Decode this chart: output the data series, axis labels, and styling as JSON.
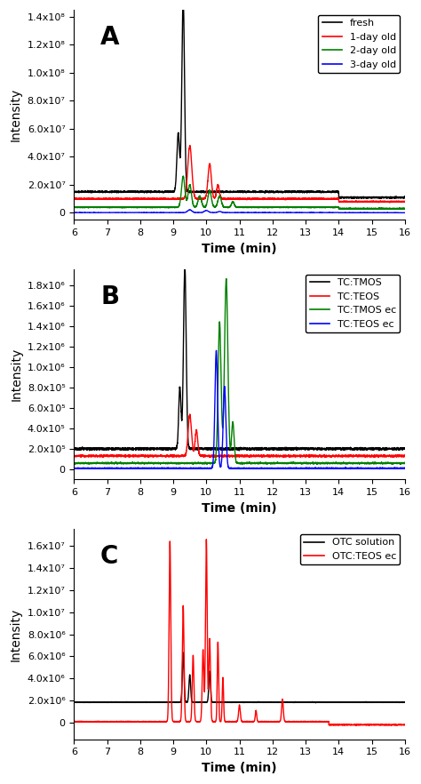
{
  "panel_A": {
    "label": "A",
    "xlim": [
      6,
      16
    ],
    "ylim": [
      -5000000.0,
      145000000.0
    ],
    "yticks": [
      0,
      20000000.0,
      40000000.0,
      60000000.0,
      80000000.0,
      100000000.0,
      120000000.0,
      140000000.0
    ],
    "ytick_labels": [
      "0",
      "2.0x10⁷",
      "4.0x10⁷",
      "6.0x10⁷",
      "8.0x10⁷",
      "1.0x10⁸",
      "1.2x10⁸",
      "1.4x10⁸"
    ],
    "legend": [
      "fresh",
      "1-day old",
      "2-day old",
      "3-day old"
    ],
    "colors": [
      "black",
      "red",
      "green",
      "blue"
    ],
    "baseline": [
      15000000.0,
      10000000.0,
      4000000.0,
      200000.0
    ],
    "xlabel": "Time (min)",
    "ylabel": "Intensity"
  },
  "panel_B": {
    "label": "B",
    "xlim": [
      6,
      16
    ],
    "ylim": [
      -100000.0,
      1950000.0
    ],
    "yticks": [
      0,
      200000.0,
      400000.0,
      600000.0,
      800000.0,
      1000000.0,
      1200000.0,
      1400000.0,
      1600000.0,
      1800000.0
    ],
    "ytick_labels": [
      "0",
      "2.0x10⁵",
      "4.0x10⁵",
      "6.0x10⁵",
      "8.0x10⁵",
      "1.0x10⁶",
      "1.2x10⁶",
      "1.4x10⁶",
      "1.6x10⁶",
      "1.8x10⁶"
    ],
    "legend": [
      "TC:TMOS",
      "TC:TEOS",
      "TC:TMOS ec",
      "TC:TEOS ec"
    ],
    "colors": [
      "black",
      "red",
      "green",
      "blue"
    ],
    "baseline": [
      200000.0,
      130000.0,
      60000.0,
      10000.0
    ],
    "xlabel": "Time (min)",
    "ylabel": "Intensity"
  },
  "panel_C": {
    "label": "C",
    "xlim": [
      6,
      16
    ],
    "ylim": [
      -1500000.0,
      17500000.0
    ],
    "yticks": [
      0,
      2000000.0,
      4000000.0,
      6000000.0,
      8000000.0,
      10000000.0,
      12000000.0,
      14000000.0,
      16000000.0
    ],
    "ytick_labels": [
      "0",
      "2.0x10⁶",
      "4.0x10⁶",
      "6.0x10⁶",
      "8.0x10⁶",
      "1.0x10⁷",
      "1.2x10⁷",
      "1.4x10⁷",
      "1.6x10⁷"
    ],
    "legend": [
      "OTC solution",
      "OTC:TEOS ec"
    ],
    "colors": [
      "black",
      "red"
    ],
    "baseline": [
      1850000.0,
      100000.0
    ],
    "xlabel": "Time (min)",
    "ylabel": "Intensity"
  }
}
